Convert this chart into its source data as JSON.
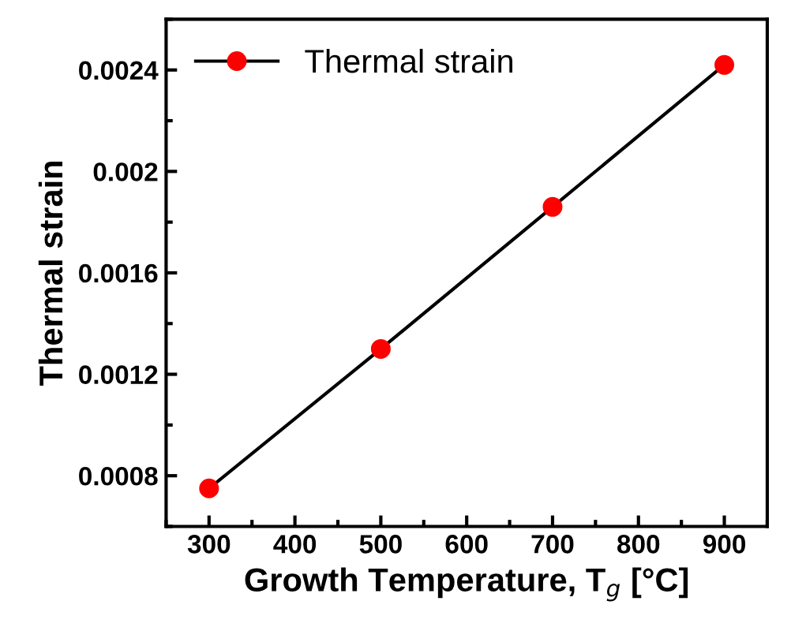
{
  "chart_data": {
    "type": "line",
    "xlabel": "Growth Temperature, T$_{g}$ [°C]",
    "ylabel": "Thermal strain",
    "x": [
      300,
      500,
      700,
      900
    ],
    "series": [
      {
        "name": "Thermal strain",
        "color": "#ff0000",
        "values": [
          0.00075,
          0.0013,
          0.00186,
          0.00242
        ]
      }
    ],
    "xlim": [
      250,
      950
    ],
    "xticks": [
      300,
      400,
      500,
      600,
      700,
      800,
      900
    ],
    "ylim": [
      0.0006,
      0.0026
    ],
    "yticks": [
      {
        "value": 0.0008,
        "label": "0.0008"
      },
      {
        "value": 0.0012,
        "label": "0.0012"
      },
      {
        "value": 0.0016,
        "label": "0.0016"
      },
      {
        "value": 0.002,
        "label": "0.002"
      },
      {
        "value": 0.0024,
        "label": "0.0024"
      }
    ],
    "marker": "circle",
    "line_style": "solid",
    "legend": "top left",
    "grid": false
  }
}
